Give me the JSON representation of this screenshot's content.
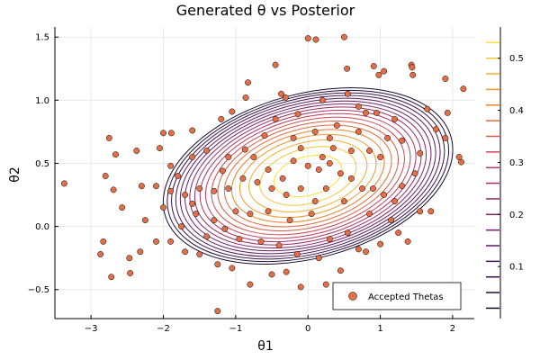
{
  "chart_data": {
    "type": "scatter+contour",
    "title": "Generated θ vs Posterior",
    "xlabel": "θ1",
    "ylabel": "θ2",
    "xlim": [
      -3.5,
      2.3
    ],
    "ylim": [
      -0.73,
      1.58
    ],
    "xticks": [
      -3,
      -2,
      -1,
      0,
      1,
      2
    ],
    "xtick_labels": [
      "−3",
      "−2",
      "−1",
      "0",
      "1",
      "2"
    ],
    "yticks": [
      -0.5,
      0.0,
      0.5,
      1.0,
      1.5
    ],
    "ytick_labels": [
      "−0.5",
      "0.0",
      "0.5",
      "1.0",
      "1.5"
    ],
    "grid": true,
    "legend": {
      "position": "bottom-right",
      "entries": [
        "Accepted Thetas"
      ]
    },
    "scatter_color": "#e26f46",
    "contour": {
      "center": [
        0.0,
        0.4
      ],
      "semi_axes_outer": [
        2.05,
        0.62
      ],
      "rotation_deg": 15,
      "levels": [
        0.02,
        0.05,
        0.08,
        0.11,
        0.14,
        0.17,
        0.2,
        0.23,
        0.26,
        0.29,
        0.32,
        0.35,
        0.38,
        0.41,
        0.44,
        0.47,
        0.5,
        0.53
      ],
      "colorbar": {
        "ticks": [
          0.1,
          0.2,
          0.3,
          0.4,
          0.5
        ],
        "tick_labels": [
          "0.1",
          "0.2",
          "0.3",
          "0.4",
          "0.5"
        ],
        "range": [
          0.0,
          0.56
        ]
      }
    },
    "series": [
      {
        "name": "Accepted Thetas",
        "points": [
          [
            -3.37,
            0.34
          ],
          [
            -2.8,
            0.4
          ],
          [
            -2.75,
            0.7
          ],
          [
            -2.69,
            0.29
          ],
          [
            -2.66,
            0.57
          ],
          [
            -2.57,
            0.15
          ],
          [
            -2.47,
            -0.25
          ],
          [
            -2.37,
            0.6
          ],
          [
            -2.32,
            -0.2
          ],
          [
            -2.83,
            -0.12
          ],
          [
            -2.87,
            -0.22
          ],
          [
            -2.72,
            -0.4
          ],
          [
            -2.46,
            -0.37
          ],
          [
            -2.0,
            0.74
          ],
          [
            -1.89,
            0.74
          ],
          [
            -1.6,
            0.76
          ],
          [
            -1.18,
            0.44
          ],
          [
            -1.05,
            0.91
          ],
          [
            -0.86,
            1.02
          ],
          [
            -0.83,
            1.14
          ],
          [
            -0.87,
            0.61
          ],
          [
            -0.45,
            1.28
          ],
          [
            -0.37,
            1.05
          ],
          [
            -0.31,
            1.02
          ],
          [
            -0.14,
            0.89
          ],
          [
            0.0,
            1.49
          ],
          [
            0.11,
            1.48
          ],
          [
            0.5,
            1.5
          ],
          [
            0.54,
            1.25
          ],
          [
            0.91,
            1.27
          ],
          [
            0.98,
            1.2
          ],
          [
            1.05,
            1.23
          ],
          [
            1.43,
            1.28
          ],
          [
            1.44,
            1.26
          ],
          [
            1.45,
            1.2
          ],
          [
            1.65,
            0.93
          ],
          [
            1.77,
            0.77
          ],
          [
            1.9,
            1.17
          ],
          [
            1.93,
            0.9
          ],
          [
            2.09,
            0.55
          ],
          [
            2.12,
            0.51
          ],
          [
            2.15,
            1.09
          ],
          [
            1.9,
            0.7
          ],
          [
            1.55,
            0.58
          ],
          [
            1.2,
            0.85
          ],
          [
            0.8,
            0.9
          ],
          [
            0.6,
            0.6
          ],
          [
            0.4,
            0.8
          ],
          [
            0.3,
            0.7
          ],
          [
            0.1,
            0.75
          ],
          [
            -0.1,
            0.62
          ],
          [
            -0.2,
            0.52
          ],
          [
            0.0,
            0.48
          ],
          [
            0.15,
            0.45
          ],
          [
            0.3,
            0.5
          ],
          [
            0.45,
            0.42
          ],
          [
            0.6,
            0.38
          ],
          [
            0.75,
            0.3
          ],
          [
            0.9,
            0.3
          ],
          [
            1.05,
            0.25
          ],
          [
            1.2,
            0.2
          ],
          [
            1.3,
            0.32
          ],
          [
            1.48,
            0.42
          ],
          [
            1.55,
            0.12
          ],
          [
            1.7,
            0.12
          ],
          [
            1.38,
            -0.12
          ],
          [
            1.25,
            -0.05
          ],
          [
            1.0,
            -0.14
          ],
          [
            0.8,
            -0.2
          ],
          [
            0.7,
            -0.18
          ],
          [
            0.45,
            -0.35
          ],
          [
            0.3,
            -0.1
          ],
          [
            0.1,
            0.2
          ],
          [
            -0.1,
            0.3
          ],
          [
            -0.3,
            0.25
          ],
          [
            -0.5,
            0.3
          ],
          [
            -0.7,
            0.35
          ],
          [
            -0.9,
            0.38
          ],
          [
            -1.1,
            0.3
          ],
          [
            -1.3,
            0.28
          ],
          [
            -1.5,
            0.3
          ],
          [
            -1.7,
            0.25
          ],
          [
            -1.9,
            0.28
          ],
          [
            -2.1,
            0.32
          ],
          [
            -2.25,
            0.05
          ],
          [
            -2.1,
            -0.12
          ],
          [
            -1.9,
            -0.12
          ],
          [
            -1.7,
            -0.2
          ],
          [
            -1.5,
            -0.22
          ],
          [
            -1.25,
            -0.3
          ],
          [
            -1.05,
            -0.33
          ],
          [
            -0.8,
            -0.46
          ],
          [
            -0.5,
            -0.38
          ],
          [
            -0.3,
            -0.36
          ],
          [
            -0.1,
            -0.48
          ],
          [
            0.25,
            -0.46
          ],
          [
            -1.9,
            0.48
          ],
          [
            -1.6,
            0.55
          ],
          [
            -1.4,
            0.6
          ],
          [
            -1.1,
            0.55
          ],
          [
            -0.6,
            0.72
          ],
          [
            -0.45,
            0.85
          ],
          [
            0.2,
            1.0
          ],
          [
            0.55,
            1.05
          ],
          [
            0.7,
            0.95
          ],
          [
            1.1,
            0.7
          ],
          [
            1.3,
            0.68
          ],
          [
            1.0,
            0.55
          ],
          [
            0.85,
            0.6
          ],
          [
            0.25,
            0.3
          ],
          [
            0.05,
            0.1
          ],
          [
            -0.25,
            0.05
          ],
          [
            -0.55,
            0.12
          ],
          [
            -0.8,
            0.1
          ],
          [
            -1.0,
            0.12
          ],
          [
            -1.3,
            0.05
          ],
          [
            -1.55,
            0.1
          ],
          [
            -1.75,
            0.0
          ],
          [
            -1.4,
            -0.08
          ],
          [
            -1.15,
            -0.02
          ],
          [
            -0.95,
            -0.1
          ],
          [
            -0.65,
            -0.12
          ],
          [
            -0.4,
            -0.15
          ],
          [
            -0.15,
            -0.22
          ],
          [
            0.15,
            -0.25
          ],
          [
            0.55,
            -0.05
          ],
          [
            0.85,
            0.1
          ],
          [
            1.15,
            0.05
          ],
          [
            -0.75,
            0.55
          ],
          [
            -0.55,
            0.45
          ],
          [
            -0.35,
            0.38
          ],
          [
            0.35,
            0.62
          ],
          [
            0.7,
            0.75
          ],
          [
            0.95,
            0.9
          ],
          [
            -1.8,
            0.4
          ],
          [
            -2.0,
            0.15
          ],
          [
            -1.6,
            0.18
          ],
          [
            0.5,
            0.2
          ],
          [
            -0.2,
            0.7
          ],
          [
            0.2,
            0.55
          ],
          [
            -1.25,
            -0.67
          ],
          [
            -1.2,
            0.85
          ],
          [
            -2.3,
            0.32
          ],
          [
            -2.05,
            0.62
          ]
        ]
      }
    ]
  }
}
